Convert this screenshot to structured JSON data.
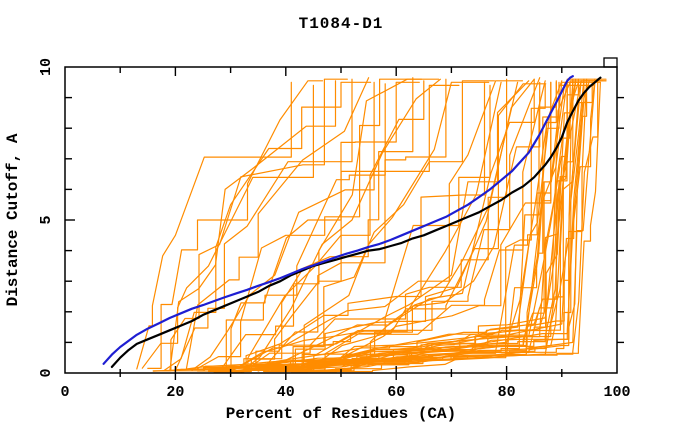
{
  "chart_data": {
    "type": "line",
    "title": "T1084-D1",
    "xlabel": "Percent of Residues (CA)",
    "ylabel": "Distance Cutoff, A",
    "xlim": [
      0,
      100
    ],
    "ylim": [
      0,
      10
    ],
    "grid": false,
    "legend": false,
    "background_color": "#ffffff",
    "frame_color": "#000000",
    "x_major_ticks": [
      0,
      20,
      40,
      60,
      80,
      100
    ],
    "x_tick_labels": [
      "0",
      "20",
      "40",
      "60",
      "80",
      "100"
    ],
    "x_minor_tick_step": 10,
    "y_major_ticks": [
      0,
      5,
      10
    ],
    "y_tick_labels": [
      "0",
      "5",
      "10"
    ],
    "y_minor_tick_step": 1,
    "series": [
      {
        "name": "black_model_curve",
        "color": "#000000",
        "width": 2.2,
        "points": [
          [
            8.5,
            0.2
          ],
          [
            10,
            0.5
          ],
          [
            11.5,
            0.75
          ],
          [
            13,
            0.95
          ],
          [
            15,
            1.1
          ],
          [
            17,
            1.25
          ],
          [
            19,
            1.4
          ],
          [
            21,
            1.55
          ],
          [
            23,
            1.7
          ],
          [
            25,
            1.9
          ],
          [
            27,
            2.05
          ],
          [
            29,
            2.2
          ],
          [
            31,
            2.35
          ],
          [
            33,
            2.5
          ],
          [
            35,
            2.65
          ],
          [
            37,
            2.85
          ],
          [
            39,
            3.0
          ],
          [
            41,
            3.2
          ],
          [
            43,
            3.35
          ],
          [
            45,
            3.5
          ],
          [
            47,
            3.6
          ],
          [
            49,
            3.7
          ],
          [
            51,
            3.8
          ],
          [
            53,
            3.9
          ],
          [
            55,
            4.0
          ],
          [
            57,
            4.05
          ],
          [
            59,
            4.15
          ],
          [
            61,
            4.25
          ],
          [
            63,
            4.4
          ],
          [
            65,
            4.5
          ],
          [
            67,
            4.65
          ],
          [
            69,
            4.8
          ],
          [
            71,
            4.95
          ],
          [
            73,
            5.1
          ],
          [
            75,
            5.25
          ],
          [
            77,
            5.45
          ],
          [
            79,
            5.65
          ],
          [
            81,
            5.9
          ],
          [
            83,
            6.1
          ],
          [
            84,
            6.25
          ],
          [
            85,
            6.4
          ],
          [
            86,
            6.6
          ],
          [
            87,
            6.8
          ],
          [
            88,
            7.05
          ],
          [
            89,
            7.35
          ],
          [
            90,
            7.7
          ],
          [
            91,
            8.2
          ],
          [
            92,
            8.55
          ],
          [
            93,
            8.9
          ],
          [
            94,
            9.15
          ],
          [
            95,
            9.35
          ],
          [
            96,
            9.5
          ],
          [
            96.5,
            9.58
          ],
          [
            97,
            9.65
          ]
        ]
      },
      {
        "name": "blue_model_curve",
        "color": "#1e1ed2",
        "width": 2.2,
        "points": [
          [
            7,
            0.3
          ],
          [
            8.5,
            0.6
          ],
          [
            10,
            0.85
          ],
          [
            11.5,
            1.05
          ],
          [
            13,
            1.25
          ],
          [
            15,
            1.45
          ],
          [
            17,
            1.62
          ],
          [
            19,
            1.8
          ],
          [
            21,
            1.95
          ],
          [
            23,
            2.1
          ],
          [
            25,
            2.22
          ],
          [
            27,
            2.35
          ],
          [
            29,
            2.48
          ],
          [
            31,
            2.6
          ],
          [
            33,
            2.72
          ],
          [
            35,
            2.85
          ],
          [
            37,
            2.97
          ],
          [
            39,
            3.1
          ],
          [
            41,
            3.25
          ],
          [
            43,
            3.4
          ],
          [
            45,
            3.52
          ],
          [
            47,
            3.65
          ],
          [
            49,
            3.78
          ],
          [
            51,
            3.9
          ],
          [
            53,
            4.0
          ],
          [
            55,
            4.12
          ],
          [
            57,
            4.22
          ],
          [
            59,
            4.35
          ],
          [
            61,
            4.5
          ],
          [
            63,
            4.65
          ],
          [
            65,
            4.8
          ],
          [
            67,
            4.95
          ],
          [
            69,
            5.1
          ],
          [
            71,
            5.3
          ],
          [
            73,
            5.5
          ],
          [
            75,
            5.75
          ],
          [
            77,
            6.0
          ],
          [
            79,
            6.3
          ],
          [
            81,
            6.6
          ],
          [
            82,
            6.8
          ],
          [
            83,
            7.0
          ],
          [
            84,
            7.2
          ],
          [
            85,
            7.5
          ],
          [
            86,
            7.8
          ],
          [
            87,
            8.15
          ],
          [
            88,
            8.5
          ],
          [
            89,
            8.85
          ],
          [
            90,
            9.2
          ],
          [
            91,
            9.55
          ],
          [
            91.5,
            9.65
          ],
          [
            92,
            9.7
          ]
        ]
      }
    ],
    "ensemble": {
      "name": "orange_model_curves",
      "color": "#ff8c00",
      "width": 1.2,
      "count": 67,
      "spec_format": [
        "x_start",
        "x_knee",
        "y_knee",
        "x_top",
        "y_top"
      ],
      "curve_specs": [
        [
          13,
          20,
          4.5,
          41,
          9.5
        ],
        [
          15,
          24,
          5.0,
          44,
          9.55
        ],
        [
          16,
          28,
          4.2,
          47,
          9.6
        ],
        [
          18,
          30,
          5.5,
          50,
          9.5
        ],
        [
          20,
          33,
          4.8,
          52,
          9.6
        ],
        [
          14,
          26,
          3.5,
          45,
          9.4
        ],
        [
          22,
          35,
          5.2,
          55,
          9.65
        ],
        [
          19,
          29,
          6.0,
          49,
          9.55
        ],
        [
          24,
          40,
          4.5,
          57,
          9.6
        ],
        [
          26,
          44,
          5.0,
          60,
          9.5
        ],
        [
          28,
          46,
          4.0,
          62,
          9.6
        ],
        [
          30,
          50,
          4.5,
          65,
          9.55
        ],
        [
          25,
          42,
          3.5,
          58,
          9.45
        ],
        [
          32,
          52,
          5.0,
          68,
          9.6
        ],
        [
          34,
          55,
          4.2,
          70,
          9.5
        ],
        [
          27,
          48,
          3.8,
          63,
          9.65
        ],
        [
          30,
          46,
          3.0,
          66,
          9.4
        ],
        [
          35,
          56,
          4.6,
          72,
          9.55
        ],
        [
          23,
          38,
          3.2,
          56,
          9.5
        ],
        [
          33,
          50,
          3.6,
          69,
          9.6
        ],
        [
          28,
          60,
          2.5,
          76,
          9.5
        ],
        [
          30,
          64,
          3.0,
          78,
          9.55
        ],
        [
          33,
          66,
          2.8,
          80,
          9.6
        ],
        [
          35,
          68,
          2.5,
          82,
          9.5
        ],
        [
          38,
          70,
          3.2,
          84,
          9.55
        ],
        [
          40,
          72,
          2.6,
          85,
          9.6
        ],
        [
          36,
          69,
          2.2,
          83,
          9.45
        ],
        [
          42,
          74,
          3.0,
          86,
          9.5
        ],
        [
          44,
          76,
          2.4,
          87,
          9.55
        ],
        [
          31,
          62,
          2.0,
          79,
          9.5
        ],
        [
          37,
          71,
          2.8,
          85,
          9.6
        ],
        [
          43,
          75,
          2.2,
          88,
          9.5
        ],
        [
          29,
          58,
          1.8,
          77,
          9.4
        ],
        [
          41,
          73,
          2.5,
          86,
          9.65
        ],
        [
          25,
          82,
          1.5,
          90,
          9.55
        ],
        [
          28,
          84,
          1.2,
          91,
          9.6
        ],
        [
          30,
          85,
          1.6,
          92,
          9.5
        ],
        [
          33,
          86,
          1.3,
          92.5,
          9.55
        ],
        [
          35,
          87,
          1.8,
          93,
          9.6
        ],
        [
          22,
          80,
          1.0,
          89,
          9.5
        ],
        [
          38,
          88,
          1.4,
          93.5,
          9.55
        ],
        [
          40,
          89,
          1.7,
          94,
          9.6
        ],
        [
          27,
          83,
          1.1,
          90.5,
          9.45
        ],
        [
          32,
          85,
          1.5,
          91.5,
          9.55
        ],
        [
          36,
          87,
          1.2,
          92.5,
          9.6
        ],
        [
          42,
          90,
          1.6,
          94.5,
          9.5
        ],
        [
          45,
          91,
          1.3,
          95,
          9.55
        ],
        [
          24,
          81,
          0.9,
          89.5,
          9.4
        ],
        [
          34,
          86,
          1.5,
          92,
          9.6
        ],
        [
          44,
          90,
          1.1,
          95.5,
          9.5
        ],
        [
          39,
          88,
          1.6,
          93.5,
          9.55
        ],
        [
          46,
          91,
          1.4,
          96,
          9.6
        ],
        [
          18,
          78,
          0.7,
          88,
          9.5
        ],
        [
          20,
          79,
          0.8,
          89,
          9.55
        ],
        [
          23,
          81,
          0.6,
          90,
          9.5
        ],
        [
          26,
          83,
          0.9,
          91,
          9.6
        ],
        [
          29,
          84,
          0.7,
          91.5,
          9.5
        ],
        [
          31,
          85,
          0.8,
          92,
          9.55
        ],
        [
          37,
          88,
          0.9,
          93,
          9.5
        ],
        [
          41,
          89,
          0.8,
          94,
          9.55
        ],
        [
          47,
          92,
          1.0,
          96,
          9.5
        ],
        [
          48,
          92,
          0.7,
          96.5,
          9.55
        ],
        [
          16,
          76,
          0.5,
          87,
          9.45
        ],
        [
          21,
          80,
          0.6,
          89.5,
          9.5
        ],
        [
          35,
          87,
          0.6,
          92.5,
          9.5
        ],
        [
          43,
          90,
          0.9,
          94.5,
          9.6
        ],
        [
          49,
          93,
          0.8,
          97,
          9.5
        ]
      ]
    }
  }
}
